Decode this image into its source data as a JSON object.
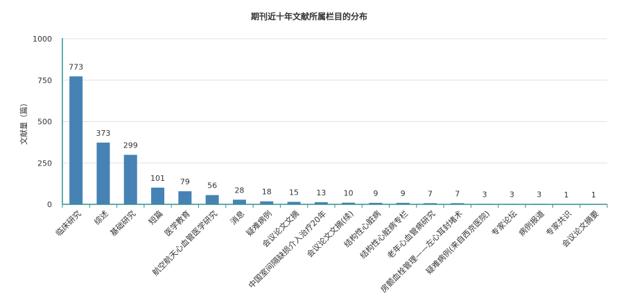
{
  "chart_data": {
    "type": "bar",
    "title": "期刊近十年文献所属栏目的分布",
    "xlabel": "",
    "ylabel": "文献量（篇）",
    "ylim": [
      0,
      1000
    ],
    "yticks": [
      0,
      250,
      500,
      750,
      1000
    ],
    "grid": true,
    "categories": [
      "临床研究",
      "综述",
      "基础研究",
      "短篇",
      "医学教育",
      "航空航天心血管医学研究",
      "消息",
      "疑难病例",
      "会议论文文摘",
      "中国室间隔缺损介入治疗20年",
      "会议论文文摘(续)",
      "结构性心脏病",
      "结构性心脏病专栏",
      "老年心血管病研究",
      "房颤血栓管理——左心耳封堵术",
      "疑难病例(来自西京医院)",
      "专家论坛",
      "病例报道",
      "专家共识",
      "会议论文摘要"
    ],
    "values": [
      773,
      373,
      299,
      101,
      79,
      56,
      28,
      18,
      15,
      13,
      10,
      9,
      9,
      7,
      7,
      3,
      3,
      3,
      1,
      1
    ],
    "colors": {
      "bar": "#4682b4",
      "axis": "#2f8f8f",
      "grid": "#e0e0e0",
      "text": "#333333"
    }
  }
}
